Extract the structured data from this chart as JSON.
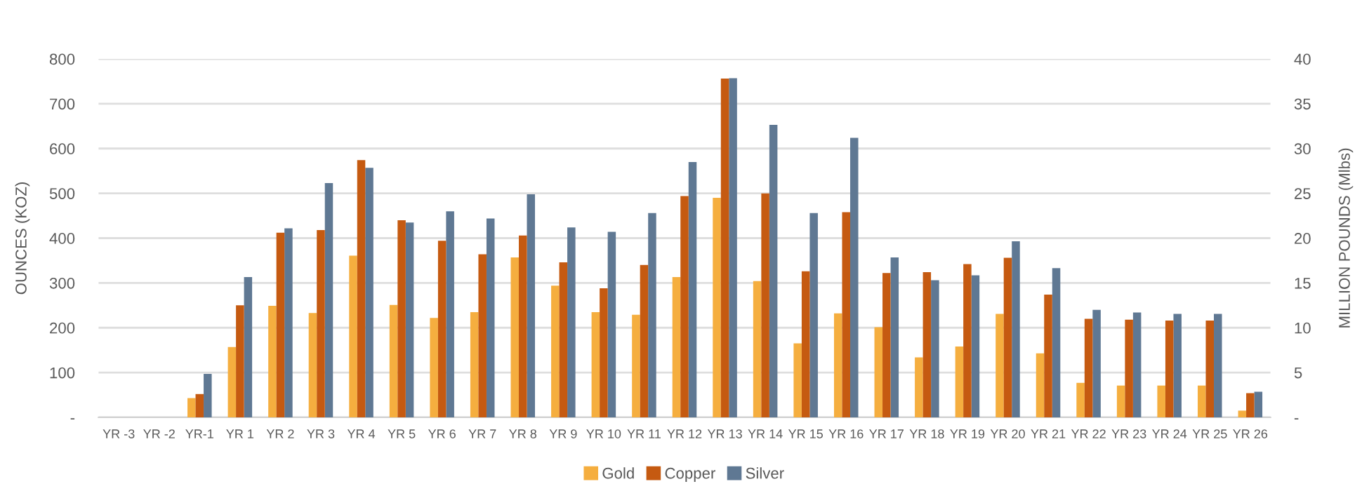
{
  "chart_data": {
    "type": "bar",
    "ylabel": "OUNCES (KOZ)",
    "y2label": "MILLION POUNDS (Mlbs)",
    "categories": [
      "YR -3",
      "YR -2",
      "YR-1",
      "YR 1",
      "YR 2",
      "YR 3",
      "YR 4",
      "YR 5",
      "YR 6",
      "YR 7",
      "YR 8",
      "YR 9",
      "YR 10",
      "YR 11",
      "YR 12",
      "YR 13",
      "YR 14",
      "YR 15",
      "YR 16",
      "YR 17",
      "YR 18",
      "YR 19",
      "YR 20",
      "YR 21",
      "YR 22",
      "YR 23",
      "YR 24",
      "YR 25",
      "YR 26"
    ],
    "series": [
      {
        "name": "Gold",
        "color": "#f5ae3f",
        "axis": "y",
        "values": [
          null,
          null,
          43,
          157,
          249,
          233,
          361,
          251,
          222,
          235,
          357,
          294,
          235,
          229,
          313,
          490,
          304,
          165,
          232,
          201,
          134,
          158,
          231,
          143,
          77,
          71,
          71,
          71,
          15
        ]
      },
      {
        "name": "Copper",
        "color": "#c55a11",
        "axis": "y2",
        "values": [
          null,
          null,
          2.6,
          12.5,
          20.6,
          20.9,
          28.7,
          22.0,
          19.7,
          18.2,
          20.3,
          17.3,
          14.4,
          17.0,
          24.7,
          37.8,
          25.0,
          16.3,
          22.9,
          16.1,
          16.2,
          17.1,
          17.8,
          13.7,
          11.0,
          10.9,
          10.8,
          10.8,
          2.7
        ]
      },
      {
        "name": "Silver",
        "color": "#5f7893",
        "axis": "y",
        "values": [
          null,
          null,
          97,
          313,
          422,
          523,
          557,
          435,
          460,
          444,
          498,
          424,
          414,
          456,
          570,
          757,
          653,
          456,
          624,
          357,
          306,
          317,
          393,
          333,
          240,
          234,
          231,
          231,
          57
        ]
      }
    ],
    "ylim": [
      0,
      800
    ],
    "yticks": [
      {
        "value": 0,
        "label": "-"
      },
      100,
      200,
      300,
      400,
      500,
      600,
      700,
      800
    ],
    "y2lim": [
      0,
      40
    ],
    "y2ticks": [
      {
        "value": 0,
        "label": "-"
      },
      5,
      10,
      15,
      20,
      25,
      30,
      35,
      40
    ],
    "grid": "y",
    "legend": "bottom"
  }
}
